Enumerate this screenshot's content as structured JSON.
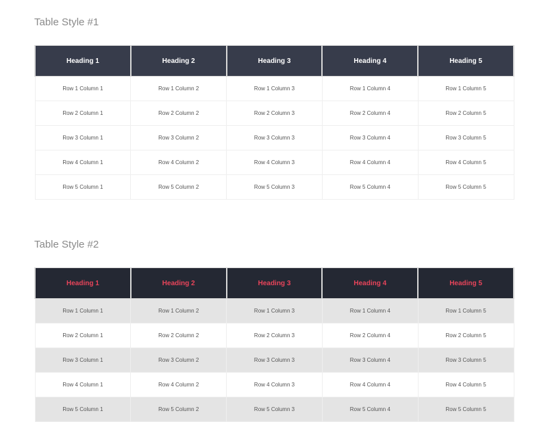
{
  "tables": [
    {
      "title": "Table Style #1",
      "headings": [
        "Heading 1",
        "Heading 2",
        "Heading 3",
        "Heading 4",
        "Heading 5"
      ],
      "rows": [
        [
          "Row 1 Column 1",
          "Row 1 Column 2",
          "Row 1 Column 3",
          "Row 1 Column 4",
          "Row 1 Column 5"
        ],
        [
          "Row 2 Column 1",
          "Row 2 Column 2",
          "Row 2 Column 3",
          "Row 2 Column 4",
          "Row 2 Column 5"
        ],
        [
          "Row 3 Column 1",
          "Row 3 Column 2",
          "Row 3 Column 3",
          "Row 3 Column 4",
          "Row 3 Column 5"
        ],
        [
          "Row 4 Column 1",
          "Row 4 Column 2",
          "Row 4 Column 3",
          "Row 4 Column 4",
          "Row 4 Column 5"
        ],
        [
          "Row 5 Column 1",
          "Row 5 Column 2",
          "Row 5 Column 3",
          "Row 5 Column 4",
          "Row 5 Column 5"
        ]
      ]
    },
    {
      "title": "Table Style #2",
      "headings": [
        "Heading 1",
        "Heading 2",
        "Heading 3",
        "Heading 4",
        "Heading 5"
      ],
      "rows": [
        [
          "Row 1 Column 1",
          "Row 1 Column 2",
          "Row 1 Column 3",
          "Row 1 Column 4",
          "Row 1 Column 5"
        ],
        [
          "Row 2 Column 1",
          "Row 2 Column 2",
          "Row 2 Column 3",
          "Row 2 Column 4",
          "Row 2 Column 5"
        ],
        [
          "Row 3 Column 1",
          "Row 3 Column 2",
          "Row 3 Column 3",
          "Row 3 Column 4",
          "Row 3 Column 5"
        ],
        [
          "Row 4 Column 1",
          "Row 4 Column 2",
          "Row 4 Column 3",
          "Row 4 Column 4",
          "Row 4 Column 5"
        ],
        [
          "Row 5 Column 1",
          "Row 5 Column 2",
          "Row 5 Column 3",
          "Row 5 Column 4",
          "Row 5 Column 5"
        ]
      ]
    }
  ],
  "colors": {
    "header1_bg": "#373c4b",
    "header2_bg": "#242833",
    "header2_text": "#e8445a",
    "stripe": "#e4e4e4"
  }
}
